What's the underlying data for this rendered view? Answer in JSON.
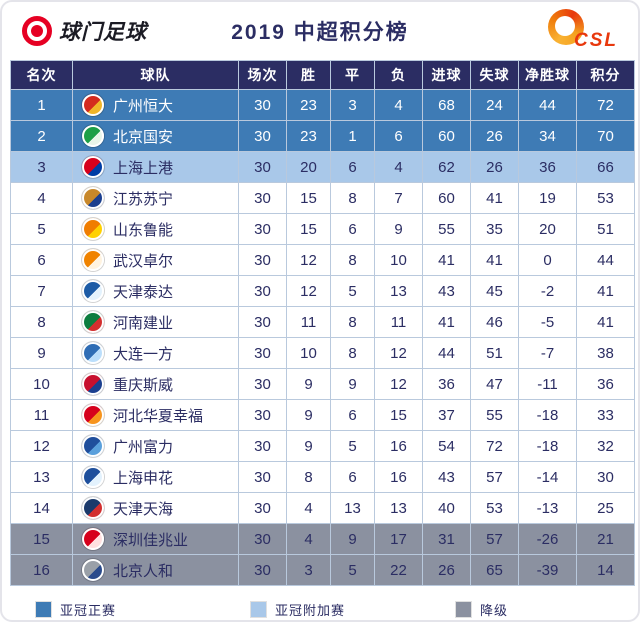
{
  "header": {
    "brand_left": "球门足球",
    "brand_right": "CSL"
  },
  "chart_data": {
    "type": "table",
    "title": "2019 中超积分榜",
    "columns": [
      "名次",
      "球队",
      "场次",
      "胜",
      "平",
      "负",
      "进球",
      "失球",
      "净胜球",
      "积分"
    ],
    "rows": [
      {
        "rank": "1",
        "team": "广州恒大",
        "played": "30",
        "win": "23",
        "draw": "3",
        "loss": "4",
        "gf": "68",
        "ga": "24",
        "gd": "44",
        "pts": "72",
        "tier": "acl",
        "logo": [
          "#d42a1e",
          "#f0b529"
        ]
      },
      {
        "rank": "2",
        "team": "北京国安",
        "played": "30",
        "win": "23",
        "draw": "1",
        "loss": "6",
        "gf": "60",
        "ga": "26",
        "gd": "34",
        "pts": "70",
        "tier": "acl",
        "logo": [
          "#1d9f47",
          "#e8f5e9"
        ]
      },
      {
        "rank": "3",
        "team": "上海上港",
        "played": "30",
        "win": "20",
        "draw": "6",
        "loss": "4",
        "gf": "62",
        "ga": "26",
        "gd": "36",
        "pts": "66",
        "tier": "playoff",
        "logo": [
          "#d6001c",
          "#003da5"
        ]
      },
      {
        "rank": "4",
        "team": "江苏苏宁",
        "played": "30",
        "win": "15",
        "draw": "8",
        "loss": "7",
        "gf": "60",
        "ga": "41",
        "gd": "19",
        "pts": "53",
        "tier": "normal",
        "logo": [
          "#c8882a",
          "#1b3f8f"
        ]
      },
      {
        "rank": "5",
        "team": "山东鲁能",
        "played": "30",
        "win": "15",
        "draw": "6",
        "loss": "9",
        "gf": "55",
        "ga": "35",
        "gd": "20",
        "pts": "51",
        "tier": "normal",
        "logo": [
          "#f07d00",
          "#ffd100"
        ]
      },
      {
        "rank": "6",
        "team": "武汉卓尔",
        "played": "30",
        "win": "12",
        "draw": "8",
        "loss": "10",
        "gf": "41",
        "ga": "41",
        "gd": "0",
        "pts": "44",
        "tier": "normal",
        "logo": [
          "#f08300",
          "#fff3e0"
        ]
      },
      {
        "rank": "7",
        "team": "天津泰达",
        "played": "30",
        "win": "12",
        "draw": "5",
        "loss": "13",
        "gf": "43",
        "ga": "45",
        "gd": "-2",
        "pts": "41",
        "tier": "normal",
        "logo": [
          "#1c5ba6",
          "#e3f2fd"
        ]
      },
      {
        "rank": "8",
        "team": "河南建业",
        "played": "30",
        "win": "11",
        "draw": "8",
        "loss": "11",
        "gf": "41",
        "ga": "46",
        "gd": "-5",
        "pts": "41",
        "tier": "normal",
        "logo": [
          "#0c7d3e",
          "#d32f2f"
        ]
      },
      {
        "rank": "9",
        "team": "大连一方",
        "played": "30",
        "win": "10",
        "draw": "8",
        "loss": "12",
        "gf": "44",
        "ga": "51",
        "gd": "-7",
        "pts": "38",
        "tier": "normal",
        "logo": [
          "#2f6db5",
          "#bbdefb"
        ]
      },
      {
        "rank": "10",
        "team": "重庆斯威",
        "played": "30",
        "win": "9",
        "draw": "9",
        "loss": "12",
        "gf": "36",
        "ga": "47",
        "gd": "-11",
        "pts": "36",
        "tier": "normal",
        "logo": [
          "#c8102e",
          "#1b3f8f"
        ]
      },
      {
        "rank": "11",
        "team": "河北华夏幸福",
        "played": "30",
        "win": "9",
        "draw": "6",
        "loss": "15",
        "gf": "37",
        "ga": "55",
        "gd": "-18",
        "pts": "33",
        "tier": "normal",
        "logo": [
          "#d6001c",
          "#f7941d"
        ]
      },
      {
        "rank": "12",
        "team": "广州富力",
        "played": "30",
        "win": "9",
        "draw": "5",
        "loss": "16",
        "gf": "54",
        "ga": "72",
        "gd": "-18",
        "pts": "32",
        "tier": "normal",
        "logo": [
          "#1f4e9c",
          "#5aa0dc"
        ]
      },
      {
        "rank": "13",
        "team": "上海申花",
        "played": "30",
        "win": "8",
        "draw": "6",
        "loss": "16",
        "gf": "43",
        "ga": "57",
        "gd": "-14",
        "pts": "30",
        "tier": "normal",
        "logo": [
          "#1e4f9c",
          "#e3f2fd"
        ]
      },
      {
        "rank": "14",
        "team": "天津天海",
        "played": "30",
        "win": "4",
        "draw": "13",
        "loss": "13",
        "gf": "40",
        "ga": "53",
        "gd": "-13",
        "pts": "25",
        "tier": "normal",
        "logo": [
          "#1b3a6b",
          "#d32f2f"
        ]
      },
      {
        "rank": "15",
        "team": "深圳佳兆业",
        "played": "30",
        "win": "4",
        "draw": "9",
        "loss": "17",
        "gf": "31",
        "ga": "57",
        "gd": "-26",
        "pts": "21",
        "tier": "relegation",
        "logo": [
          "#d6001c",
          "#ffe0e0"
        ]
      },
      {
        "rank": "16",
        "team": "北京人和",
        "played": "30",
        "win": "3",
        "draw": "5",
        "loss": "22",
        "gf": "26",
        "ga": "65",
        "gd": "-39",
        "pts": "14",
        "tier": "relegation",
        "logo": [
          "#9aa0a8",
          "#2b4b8c"
        ]
      }
    ],
    "legend": [
      {
        "label": "亚冠正赛",
        "color": "#3e7bb5"
      },
      {
        "label": "亚冠附加赛",
        "color": "#a9c8e9"
      },
      {
        "label": "降级",
        "color": "#8b91a0"
      }
    ]
  },
  "colors": {
    "header_row_bg": "#2b2d63",
    "acl_row_bg": "#3e7bb5",
    "playoff_row_bg": "#a9c8e9",
    "relegation_row_bg": "#8b91a0",
    "grid_line": "#b9c9dd",
    "text_dark": "#2b2d63",
    "brand_red": "#e60023",
    "csl_orange": "#e8380d"
  }
}
